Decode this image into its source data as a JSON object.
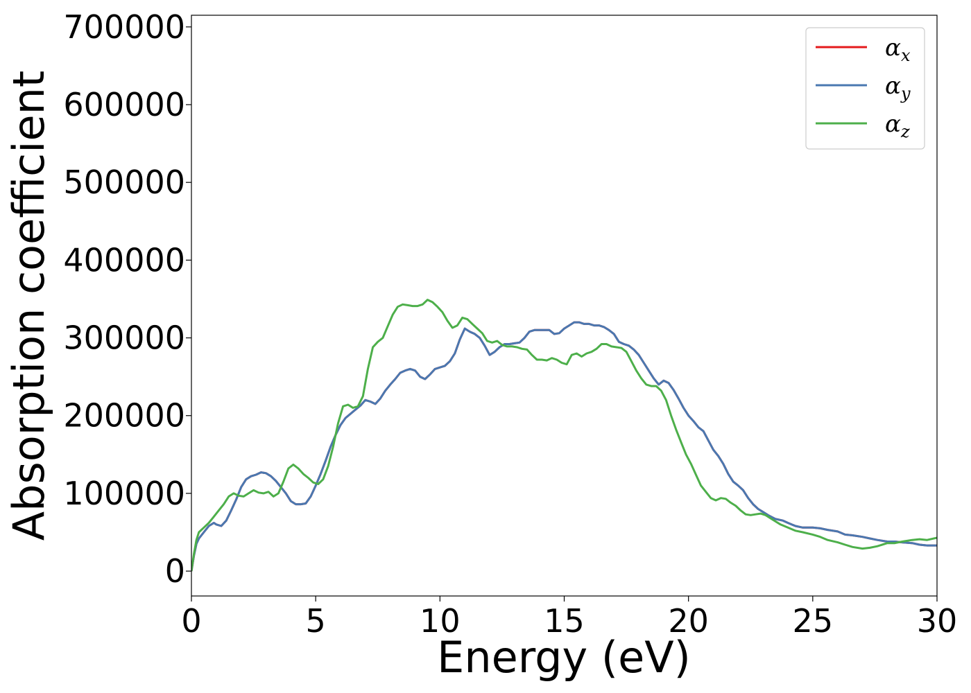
{
  "chart_data": {
    "type": "line",
    "xlabel": "Energy (eV)",
    "ylabel": "Absorption coefficient",
    "xlim": [
      0,
      30
    ],
    "ylim": [
      -32000,
      715000
    ],
    "xticks": [
      0,
      5,
      10,
      15,
      20,
      25,
      30
    ],
    "yticks": [
      0,
      100000,
      200000,
      300000,
      400000,
      500000,
      600000,
      700000
    ],
    "grid": false,
    "legend_position": "top-right",
    "series": [
      {
        "name": "α",
        "subscript": "x",
        "color": "#e41a1c",
        "x": [
          0,
          0.1,
          0.2,
          0.3,
          0.5,
          0.7,
          0.9,
          1.0,
          1.2,
          1.4,
          1.6,
          1.8,
          2.0,
          2.2,
          2.4,
          2.6,
          2.8,
          3.0,
          3.2,
          3.4,
          3.6,
          3.8,
          4.0,
          4.2,
          4.4,
          4.6,
          4.8,
          5.0,
          5.2,
          5.4,
          5.6,
          5.8,
          6.0,
          6.2,
          6.5,
          6.8,
          7.0,
          7.2,
          7.4,
          7.6,
          7.8,
          8.0,
          8.2,
          8.4,
          8.6,
          8.8,
          9.0,
          9.2,
          9.4,
          9.6,
          9.8,
          10.0,
          10.2,
          10.4,
          10.6,
          10.8,
          11.0,
          11.2,
          11.4,
          11.6,
          11.8,
          12.0,
          12.2,
          12.4,
          12.6,
          12.8,
          13.0,
          13.2,
          13.4,
          13.6,
          13.8,
          14.0,
          14.2,
          14.4,
          14.6,
          14.8,
          15.0,
          15.2,
          15.4,
          15.6,
          15.8,
          16.0,
          16.2,
          16.4,
          16.6,
          16.8,
          17.0,
          17.2,
          17.4,
          17.6,
          17.8,
          18.0,
          18.2,
          18.4,
          18.6,
          18.8,
          19.0,
          19.2,
          19.4,
          19.6,
          19.8,
          20.0,
          20.2,
          20.4,
          20.6,
          20.8,
          21.0,
          21.2,
          21.4,
          21.6,
          21.8,
          22.0,
          22.2,
          22.4,
          22.6,
          22.8,
          23.0,
          23.2,
          23.5,
          23.8,
          24.0,
          24.3,
          24.6,
          25.0,
          25.3,
          25.6,
          26.0,
          26.3,
          26.6,
          27.0,
          27.3,
          27.6,
          28.0,
          28.3,
          28.6,
          29.0,
          29.3,
          29.6,
          30.0
        ],
        "y": [
          0,
          20000,
          35000,
          42000,
          50000,
          58000,
          62000,
          60000,
          58000,
          65000,
          78000,
          92000,
          108000,
          118000,
          122000,
          124000,
          127000,
          126000,
          122000,
          116000,
          108000,
          100000,
          90000,
          86000,
          86000,
          87000,
          96000,
          110000,
          125000,
          142000,
          160000,
          175000,
          188000,
          197000,
          205000,
          213000,
          220000,
          218000,
          215000,
          222000,
          232000,
          240000,
          247000,
          255000,
          258000,
          260000,
          258000,
          250000,
          247000,
          253000,
          260000,
          262000,
          264000,
          270000,
          280000,
          298000,
          312000,
          308000,
          305000,
          300000,
          290000,
          278000,
          282000,
          288000,
          292000,
          292000,
          293000,
          294000,
          300000,
          308000,
          310000,
          310000,
          310000,
          310000,
          305000,
          306000,
          312000,
          316000,
          320000,
          320000,
          318000,
          318000,
          316000,
          316000,
          314000,
          310000,
          305000,
          295000,
          292000,
          290000,
          285000,
          278000,
          268000,
          258000,
          248000,
          240000,
          245000,
          242000,
          233000,
          222000,
          210000,
          200000,
          193000,
          185000,
          180000,
          168000,
          156000,
          148000,
          138000,
          125000,
          115000,
          110000,
          104000,
          94000,
          86000,
          80000,
          76000,
          72000,
          67000,
          65000,
          62000,
          58000,
          56000,
          56000,
          55000,
          53000,
          51000,
          47000,
          46000,
          44000,
          42000,
          40000,
          38000,
          38000,
          37000,
          36000,
          34000,
          33000,
          33000
        ]
      },
      {
        "name": "α",
        "subscript": "y",
        "color": "#4a78b0",
        "x": [
          0,
          0.1,
          0.2,
          0.3,
          0.5,
          0.7,
          0.9,
          1.0,
          1.2,
          1.4,
          1.6,
          1.8,
          2.0,
          2.2,
          2.4,
          2.6,
          2.8,
          3.0,
          3.2,
          3.4,
          3.6,
          3.8,
          4.0,
          4.2,
          4.4,
          4.6,
          4.8,
          5.0,
          5.2,
          5.4,
          5.6,
          5.8,
          6.0,
          6.2,
          6.5,
          6.8,
          7.0,
          7.2,
          7.4,
          7.6,
          7.8,
          8.0,
          8.2,
          8.4,
          8.6,
          8.8,
          9.0,
          9.2,
          9.4,
          9.6,
          9.8,
          10.0,
          10.2,
          10.4,
          10.6,
          10.8,
          11.0,
          11.2,
          11.4,
          11.6,
          11.8,
          12.0,
          12.2,
          12.4,
          12.6,
          12.8,
          13.0,
          13.2,
          13.4,
          13.6,
          13.8,
          14.0,
          14.2,
          14.4,
          14.6,
          14.8,
          15.0,
          15.2,
          15.4,
          15.6,
          15.8,
          16.0,
          16.2,
          16.4,
          16.6,
          16.8,
          17.0,
          17.2,
          17.4,
          17.6,
          17.8,
          18.0,
          18.2,
          18.4,
          18.6,
          18.8,
          19.0,
          19.2,
          19.4,
          19.6,
          19.8,
          20.0,
          20.2,
          20.4,
          20.6,
          20.8,
          21.0,
          21.2,
          21.4,
          21.6,
          21.8,
          22.0,
          22.2,
          22.4,
          22.6,
          22.8,
          23.0,
          23.2,
          23.5,
          23.8,
          24.0,
          24.3,
          24.6,
          25.0,
          25.3,
          25.6,
          26.0,
          26.3,
          26.6,
          27.0,
          27.3,
          27.6,
          28.0,
          28.3,
          28.6,
          29.0,
          29.3,
          29.6,
          30.0
        ],
        "y": [
          0,
          20000,
          35000,
          42000,
          50000,
          58000,
          62000,
          60000,
          58000,
          65000,
          78000,
          92000,
          108000,
          118000,
          122000,
          124000,
          127000,
          126000,
          122000,
          116000,
          108000,
          100000,
          90000,
          86000,
          86000,
          87000,
          96000,
          110000,
          125000,
          142000,
          160000,
          175000,
          188000,
          197000,
          205000,
          213000,
          220000,
          218000,
          215000,
          222000,
          232000,
          240000,
          247000,
          255000,
          258000,
          260000,
          258000,
          250000,
          247000,
          253000,
          260000,
          262000,
          264000,
          270000,
          280000,
          298000,
          312000,
          308000,
          305000,
          300000,
          290000,
          278000,
          282000,
          288000,
          292000,
          292000,
          293000,
          294000,
          300000,
          308000,
          310000,
          310000,
          310000,
          310000,
          305000,
          306000,
          312000,
          316000,
          320000,
          320000,
          318000,
          318000,
          316000,
          316000,
          314000,
          310000,
          305000,
          295000,
          292000,
          290000,
          285000,
          278000,
          268000,
          258000,
          248000,
          240000,
          245000,
          242000,
          233000,
          222000,
          210000,
          200000,
          193000,
          185000,
          180000,
          168000,
          156000,
          148000,
          138000,
          125000,
          115000,
          110000,
          104000,
          94000,
          86000,
          80000,
          76000,
          72000,
          67000,
          65000,
          62000,
          58000,
          56000,
          56000,
          55000,
          53000,
          51000,
          47000,
          46000,
          44000,
          42000,
          40000,
          38000,
          38000,
          37000,
          36000,
          34000,
          33000,
          33000
        ]
      },
      {
        "name": "α",
        "subscript": "z",
        "color": "#4daf4a",
        "x": [
          0,
          0.1,
          0.2,
          0.3,
          0.5,
          0.7,
          0.9,
          1.1,
          1.3,
          1.5,
          1.7,
          1.9,
          2.1,
          2.3,
          2.5,
          2.7,
          2.9,
          3.1,
          3.3,
          3.5,
          3.7,
          3.9,
          4.1,
          4.3,
          4.5,
          4.7,
          4.9,
          5.1,
          5.3,
          5.5,
          5.7,
          5.9,
          6.1,
          6.3,
          6.5,
          6.7,
          6.9,
          7.1,
          7.3,
          7.5,
          7.7,
          7.9,
          8.1,
          8.3,
          8.5,
          8.7,
          8.9,
          9.1,
          9.3,
          9.5,
          9.7,
          9.9,
          10.1,
          10.3,
          10.5,
          10.7,
          10.9,
          11.1,
          11.3,
          11.5,
          11.7,
          11.9,
          12.1,
          12.3,
          12.5,
          12.7,
          12.9,
          13.1,
          13.3,
          13.5,
          13.7,
          13.9,
          14.1,
          14.3,
          14.5,
          14.7,
          14.9,
          15.1,
          15.3,
          15.5,
          15.7,
          15.9,
          16.1,
          16.3,
          16.5,
          16.7,
          16.9,
          17.1,
          17.3,
          17.5,
          17.7,
          17.9,
          18.1,
          18.3,
          18.5,
          18.7,
          18.9,
          19.1,
          19.3,
          19.5,
          19.7,
          19.9,
          20.1,
          20.3,
          20.5,
          20.7,
          20.9,
          21.1,
          21.3,
          21.5,
          21.7,
          21.9,
          22.1,
          22.3,
          22.5,
          22.7,
          22.9,
          23.1,
          23.4,
          23.7,
          24.0,
          24.3,
          24.6,
          25.0,
          25.3,
          25.6,
          26.0,
          26.3,
          26.6,
          27.0,
          27.3,
          27.6,
          28.0,
          28.3,
          28.6,
          29.0,
          29.3,
          29.6,
          30.0
        ],
        "y": [
          0,
          22000,
          40000,
          50000,
          56000,
          62000,
          70000,
          78000,
          86000,
          96000,
          100000,
          97000,
          96000,
          100000,
          104000,
          101000,
          100000,
          102000,
          96000,
          100000,
          115000,
          132000,
          137000,
          132000,
          125000,
          120000,
          114000,
          112000,
          118000,
          135000,
          160000,
          190000,
          212000,
          214000,
          210000,
          212000,
          225000,
          260000,
          288000,
          295000,
          300000,
          315000,
          330000,
          340000,
          343000,
          342000,
          341000,
          341000,
          343000,
          349000,
          346000,
          340000,
          333000,
          322000,
          313000,
          316000,
          326000,
          324000,
          318000,
          312000,
          306000,
          296000,
          294000,
          296000,
          291000,
          289000,
          289000,
          288000,
          286000,
          285000,
          278000,
          272000,
          272000,
          271000,
          274000,
          272000,
          268000,
          266000,
          278000,
          280000,
          276000,
          280000,
          282000,
          286000,
          292000,
          292000,
          289000,
          288000,
          287000,
          282000,
          270000,
          258000,
          248000,
          240000,
          238000,
          238000,
          232000,
          220000,
          200000,
          182000,
          166000,
          150000,
          138000,
          124000,
          110000,
          102000,
          94000,
          91000,
          94000,
          93000,
          88000,
          84000,
          78000,
          73000,
          72000,
          73000,
          74000,
          72000,
          66000,
          60000,
          56000,
          52000,
          50000,
          47000,
          44000,
          40000,
          37000,
          34000,
          31000,
          29000,
          30000,
          32000,
          36000,
          36000,
          38000,
          40000,
          41000,
          40000,
          43000
        ]
      }
    ]
  }
}
